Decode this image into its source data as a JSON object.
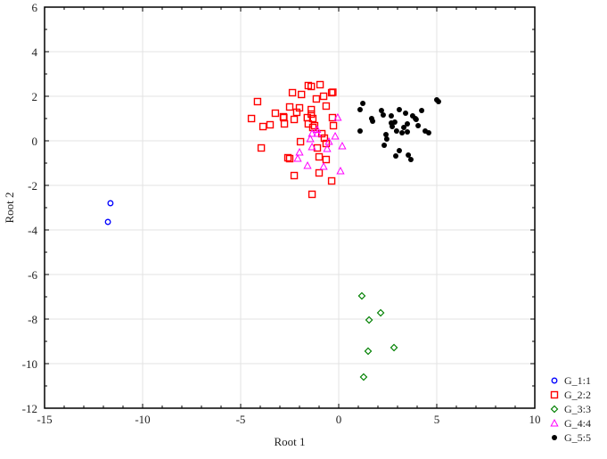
{
  "chart_data": {
    "type": "scatter",
    "xlabel": "Root 1",
    "ylabel": "Root 2",
    "xlim": [
      -15,
      10
    ],
    "ylim": [
      -12,
      6
    ],
    "xticks": [
      -15,
      -10,
      -5,
      0,
      5,
      10
    ],
    "yticks": [
      -12,
      -10,
      -8,
      -6,
      -4,
      -2,
      0,
      2,
      4,
      6
    ],
    "grid": true,
    "legend_position": "bottom-right",
    "series": [
      {
        "name": "G_1:1",
        "marker": "circle",
        "color": "#0000ff",
        "points": [
          [
            -11.64,
            -2.8
          ],
          [
            -11.77,
            -3.64
          ]
        ]
      },
      {
        "name": "G_2:2",
        "marker": "square",
        "color": "#ff0000",
        "points": [
          [
            -1.55,
            2.48
          ],
          [
            -1.4,
            2.44
          ],
          [
            -0.95,
            2.52
          ],
          [
            -2.36,
            2.16
          ],
          [
            -1.9,
            2.08
          ],
          [
            -0.77,
            2.0
          ],
          [
            -0.36,
            2.16
          ],
          [
            -0.3,
            2.18
          ],
          [
            -4.14,
            1.76
          ],
          [
            -1.14,
            1.88
          ],
          [
            -2.5,
            1.52
          ],
          [
            -2.0,
            1.48
          ],
          [
            -1.4,
            1.4
          ],
          [
            -0.64,
            1.56
          ],
          [
            -3.23,
            1.24
          ],
          [
            -2.14,
            1.28
          ],
          [
            -2.82,
            1.08
          ],
          [
            -2.8,
            1.04
          ],
          [
            -1.4,
            1.2
          ],
          [
            -4.45,
            1.0
          ],
          [
            -1.6,
            1.04
          ],
          [
            -1.32,
            1.0
          ],
          [
            -0.32,
            1.04
          ],
          [
            -2.27,
            0.96
          ],
          [
            -3.86,
            0.64
          ],
          [
            -3.5,
            0.72
          ],
          [
            -2.77,
            0.76
          ],
          [
            -1.55,
            0.76
          ],
          [
            -1.23,
            0.68
          ],
          [
            -1.32,
            0.6
          ],
          [
            -0.27,
            0.68
          ],
          [
            -0.86,
            0.32
          ],
          [
            -0.73,
            0.12
          ],
          [
            -1.95,
            -0.04
          ],
          [
            -0.64,
            -0.12
          ],
          [
            -3.95,
            -0.32
          ],
          [
            -1.09,
            -0.32
          ],
          [
            -2.59,
            -0.76
          ],
          [
            -2.5,
            -0.8
          ],
          [
            -1.0,
            -0.72
          ],
          [
            -0.64,
            -0.84
          ],
          [
            -2.27,
            -1.56
          ],
          [
            -1.0,
            -1.44
          ],
          [
            -0.36,
            -1.8
          ],
          [
            -1.36,
            -2.4
          ]
        ]
      },
      {
        "name": "G_3:3",
        "marker": "diamond",
        "color": "#008000",
        "points": [
          [
            1.18,
            -6.96
          ],
          [
            1.55,
            -8.04
          ],
          [
            2.14,
            -7.72
          ],
          [
            2.82,
            -9.28
          ],
          [
            1.5,
            -9.44
          ],
          [
            1.27,
            -10.6
          ]
        ]
      },
      {
        "name": "G_4:4",
        "marker": "triangle",
        "color": "#ff00ff",
        "points": [
          [
            -0.05,
            1.04
          ],
          [
            -1.36,
            0.32
          ],
          [
            -1.09,
            0.32
          ],
          [
            -0.5,
            -0.04
          ],
          [
            -0.18,
            0.2
          ],
          [
            -1.45,
            0.08
          ],
          [
            0.18,
            -0.24
          ],
          [
            -1.36,
            -0.28
          ],
          [
            -0.59,
            -0.36
          ],
          [
            -2.0,
            -0.52
          ],
          [
            -2.09,
            -0.8
          ],
          [
            -1.59,
            -1.12
          ],
          [
            -0.77,
            -1.16
          ],
          [
            0.09,
            -1.36
          ],
          [
            -1.1,
            0.5
          ]
        ]
      },
      {
        "name": "G_5:5",
        "marker": "filled-circle",
        "color": "#000000",
        "points": [
          [
            1.23,
            1.68
          ],
          [
            1.09,
            1.4
          ],
          [
            1.68,
            1.0
          ],
          [
            1.73,
            0.88
          ],
          [
            1.09,
            0.44
          ],
          [
            2.18,
            1.36
          ],
          [
            2.27,
            1.16
          ],
          [
            2.68,
            1.12
          ],
          [
            3.09,
            1.4
          ],
          [
            3.41,
            1.24
          ],
          [
            3.77,
            1.12
          ],
          [
            3.91,
            1.0
          ],
          [
            4.23,
            1.36
          ],
          [
            2.68,
            0.8
          ],
          [
            2.86,
            0.84
          ],
          [
            3.5,
            0.76
          ],
          [
            4.05,
            0.68
          ],
          [
            2.73,
            0.64
          ],
          [
            3.32,
            0.6
          ],
          [
            2.95,
            0.44
          ],
          [
            3.23,
            0.36
          ],
          [
            3.5,
            0.4
          ],
          [
            4.41,
            0.44
          ],
          [
            4.59,
            0.36
          ],
          [
            2.41,
            0.28
          ],
          [
            2.45,
            0.08
          ],
          [
            2.32,
            -0.2
          ],
          [
            3.09,
            -0.44
          ],
          [
            2.91,
            -0.68
          ],
          [
            3.55,
            -0.64
          ],
          [
            3.68,
            -0.84
          ],
          [
            5.0,
            1.84
          ],
          [
            5.09,
            1.76
          ],
          [
            3.95,
            0.96
          ]
        ]
      }
    ]
  }
}
